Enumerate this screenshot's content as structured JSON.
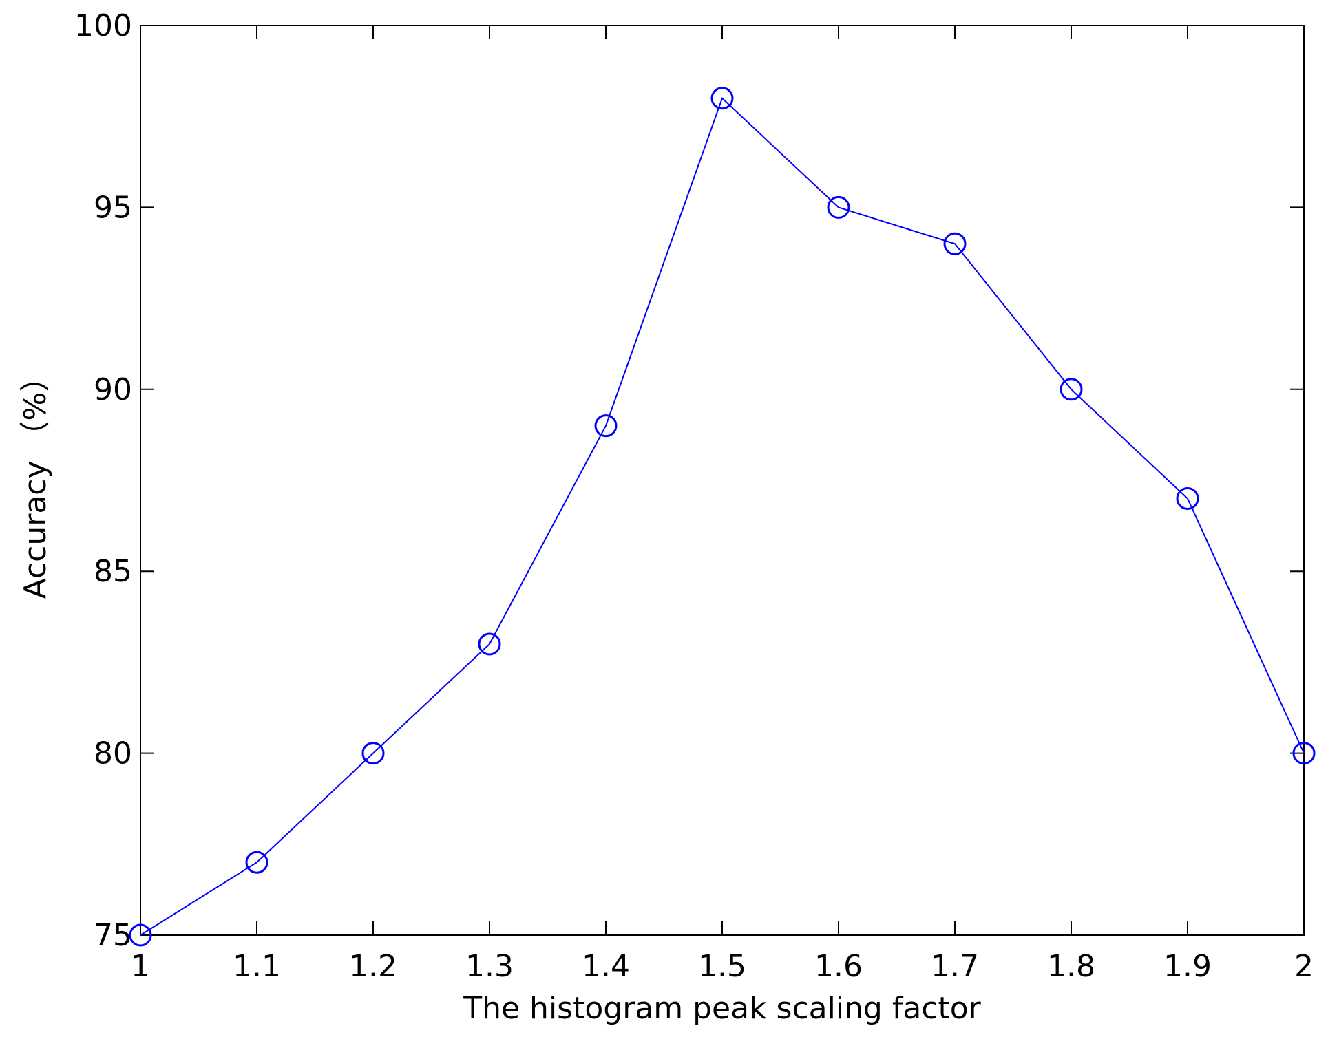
{
  "chart_data": {
    "type": "line",
    "x": [
      1,
      1.1,
      1.2,
      1.3,
      1.4,
      1.5,
      1.6,
      1.7,
      1.8,
      1.9,
      2
    ],
    "series": [
      {
        "color": "#0000ff",
        "values": [
          75,
          77,
          80,
          83,
          89,
          98,
          95,
          94,
          90,
          87,
          80
        ]
      }
    ],
    "xlim": [
      1,
      2
    ],
    "xticks": [
      1,
      1.1,
      1.2,
      1.3,
      1.4,
      1.5,
      1.6,
      1.7,
      1.8,
      1.9,
      2
    ],
    "ylim": [
      75,
      100
    ],
    "yticks": [
      75,
      80,
      85,
      90,
      95,
      100
    ],
    "xlabel": "The histogram peak scaling factor",
    "ylabel": "Accuracy （%）",
    "marker": "circle",
    "grid": false
  }
}
